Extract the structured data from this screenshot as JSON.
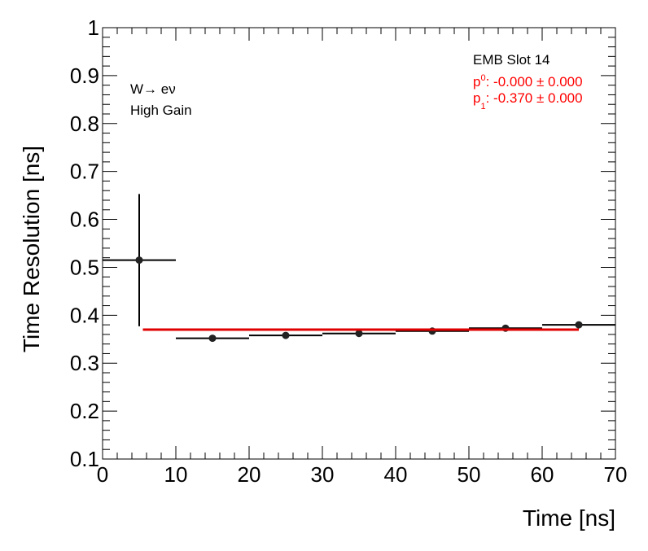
{
  "chart_data": {
    "type": "scatter",
    "xlabel": "Time [ns]",
    "ylabel": "Time Resolution [ns]",
    "xlim": [
      0,
      70
    ],
    "ylim": [
      0.1,
      1.0
    ],
    "x_ticks": [
      "0",
      "10",
      "20",
      "30",
      "40",
      "50",
      "60",
      "70"
    ],
    "y_ticks": [
      "0.1",
      "0.2",
      "0.3",
      "0.4",
      "0.5",
      "0.6",
      "0.7",
      "0.8",
      "0.9",
      "1"
    ],
    "grid": false,
    "points": [
      {
        "x": 5,
        "y": 0.515,
        "xerr": 5,
        "yerr": 0.138
      },
      {
        "x": 15,
        "y": 0.352,
        "xerr": 5,
        "yerr": 0.003
      },
      {
        "x": 25,
        "y": 0.358,
        "xerr": 5,
        "yerr": 0.003
      },
      {
        "x": 35,
        "y": 0.362,
        "xerr": 5,
        "yerr": 0.003
      },
      {
        "x": 45,
        "y": 0.367,
        "xerr": 5,
        "yerr": 0.003
      },
      {
        "x": 55,
        "y": 0.373,
        "xerr": 5,
        "yerr": 0.003
      },
      {
        "x": 65,
        "y": 0.38,
        "xerr": 5,
        "yerr": 0.003
      }
    ],
    "fit": {
      "x_start": 5.5,
      "x_end": 65,
      "y": 0.37,
      "color": "#e00000"
    },
    "annotations": {
      "process_main": "W",
      "process_arrow": "→",
      "process_products": " eν",
      "gain": "High Gain",
      "slot": "EMB Slot 14",
      "p0_symbol": "p",
      "p0_index": "0",
      "p0_text": ": -0.000 ± 0.000",
      "p1_symbol": "p",
      "p1_index": "1",
      "p1_text": ": -0.370 ± 0.000"
    }
  }
}
